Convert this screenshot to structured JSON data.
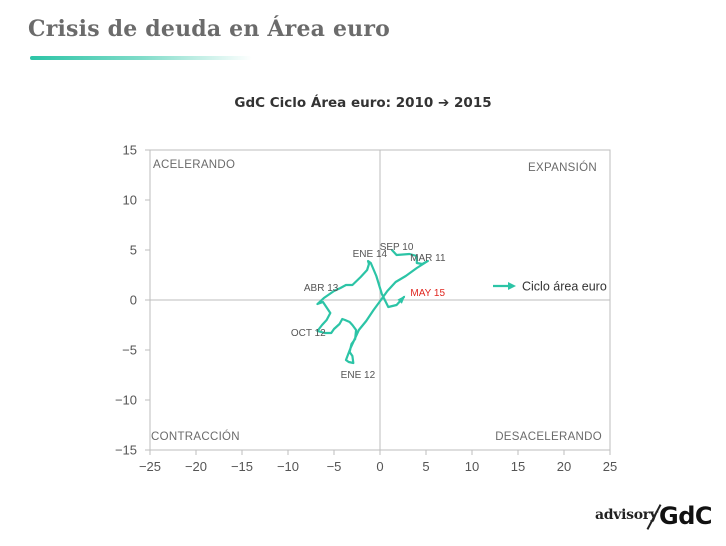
{
  "header": {
    "title": "Crisis de deuda en Área euro"
  },
  "brand": {
    "advisory": "advisory",
    "gdc": "GdC"
  },
  "colors": {
    "series": "#2cc4a6",
    "highlight": "#e0261f",
    "axis": "#bdbdbd",
    "text": "#555555"
  },
  "chart_data": {
    "type": "line",
    "title": "GdC Ciclo Área euro: 2010 ➔ 2015",
    "xlabel": "",
    "ylabel": "",
    "xlim": [
      -25,
      25
    ],
    "ylim": [
      -15,
      15
    ],
    "xticks": [
      -25,
      -20,
      -15,
      -10,
      -5,
      0,
      5,
      10,
      15,
      20,
      25
    ],
    "yticks": [
      -15,
      -10,
      -5,
      0,
      5,
      10,
      15
    ],
    "grid": false,
    "legend_position": "right",
    "quadrants": [
      {
        "label": "ACELERANDO",
        "position": "top-left"
      },
      {
        "label": "EXPANSIÓN",
        "position": "top-right"
      },
      {
        "label": "CONTRACCIÓN",
        "position": "bottom-left"
      },
      {
        "label": "DESACELERANDO",
        "position": "bottom-right"
      }
    ],
    "series": [
      {
        "name": "Ciclo área euro",
        "x": [
          1.3,
          1.8,
          3.2,
          4.0,
          4.0,
          4.6,
          5.2,
          4.0,
          2.8,
          1.7,
          0.8,
          0.1,
          -0.7,
          -1.5,
          -2.3,
          -2.8,
          -3.2,
          -3.7,
          -3.4,
          -2.9,
          -3.0,
          -3.3,
          -3.1,
          -2.7,
          -2.6,
          -3.0,
          -3.3,
          -3.8,
          -4.1,
          -4.4,
          -5.0,
          -5.3,
          -6.0,
          -6.8,
          -6.3,
          -5.8,
          -5.4,
          -6.2,
          -6.8,
          -6.1,
          -5.0,
          -4.3,
          -3.7,
          -3.0,
          -2.1,
          -1.4,
          -1.2,
          -1.3,
          -1.0,
          -0.4,
          0.2,
          0.9,
          1.8,
          2.6
        ],
        "y": [
          5.0,
          4.5,
          4.6,
          4.4,
          3.7,
          3.6,
          3.9,
          3.2,
          2.4,
          1.8,
          0.9,
          0.0,
          -1.0,
          -2.1,
          -3.0,
          -4.0,
          -4.8,
          -6.0,
          -6.2,
          -6.3,
          -5.6,
          -5.2,
          -4.4,
          -3.9,
          -3.0,
          -2.5,
          -2.2,
          -2.0,
          -1.9,
          -2.4,
          -2.9,
          -3.3,
          -3.3,
          -3.1,
          -2.5,
          -2.0,
          -1.3,
          -0.2,
          -0.4,
          0.2,
          0.9,
          1.2,
          1.5,
          1.5,
          2.3,
          3.0,
          3.6,
          3.9,
          3.7,
          2.4,
          0.6,
          -0.7,
          -0.5,
          0.3
        ]
      }
    ],
    "annotations": [
      {
        "text": "SEP 10",
        "x": 1.8,
        "y": 5.0
      },
      {
        "text": "MAR 11",
        "x": 5.2,
        "y": 3.9
      },
      {
        "text": "ENE 14",
        "x": -1.1,
        "y": 4.3
      },
      {
        "text": "ABR 13",
        "x": -6.4,
        "y": 0.9
      },
      {
        "text": "OCT 12",
        "x": -7.8,
        "y": -3.6
      },
      {
        "text": "ENE 12",
        "x": -2.4,
        "y": -7.8
      },
      {
        "text": "MAY 15",
        "x": 3.3,
        "y": 0.4
      }
    ]
  }
}
